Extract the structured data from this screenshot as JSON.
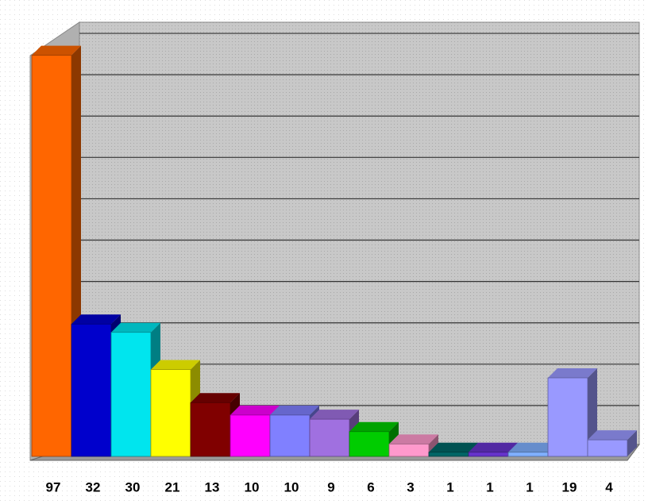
{
  "chart_data": {
    "type": "bar",
    "categories": [
      null,
      null,
      null,
      null,
      null,
      null,
      null,
      null,
      null,
      null,
      null,
      null,
      null,
      null,
      null
    ],
    "values": [
      97,
      32,
      30,
      21,
      13,
      10,
      10,
      9,
      6,
      3,
      1,
      1,
      1,
      19,
      4
    ],
    "colors": [
      "#ff6600",
      "#0000cc",
      "#00e5ee",
      "#ffff00",
      "#800000",
      "#ff00ff",
      "#8080ff",
      "#a070e0",
      "#00cc00",
      "#ff99cc",
      "#006666",
      "#6633cc",
      "#80b0ff",
      "#9999ff",
      "#9999ff"
    ],
    "ylim": [
      0,
      105
    ],
    "yticks": [
      10,
      20,
      30,
      40,
      50,
      60,
      70,
      80,
      90,
      100
    ],
    "grid": true
  }
}
